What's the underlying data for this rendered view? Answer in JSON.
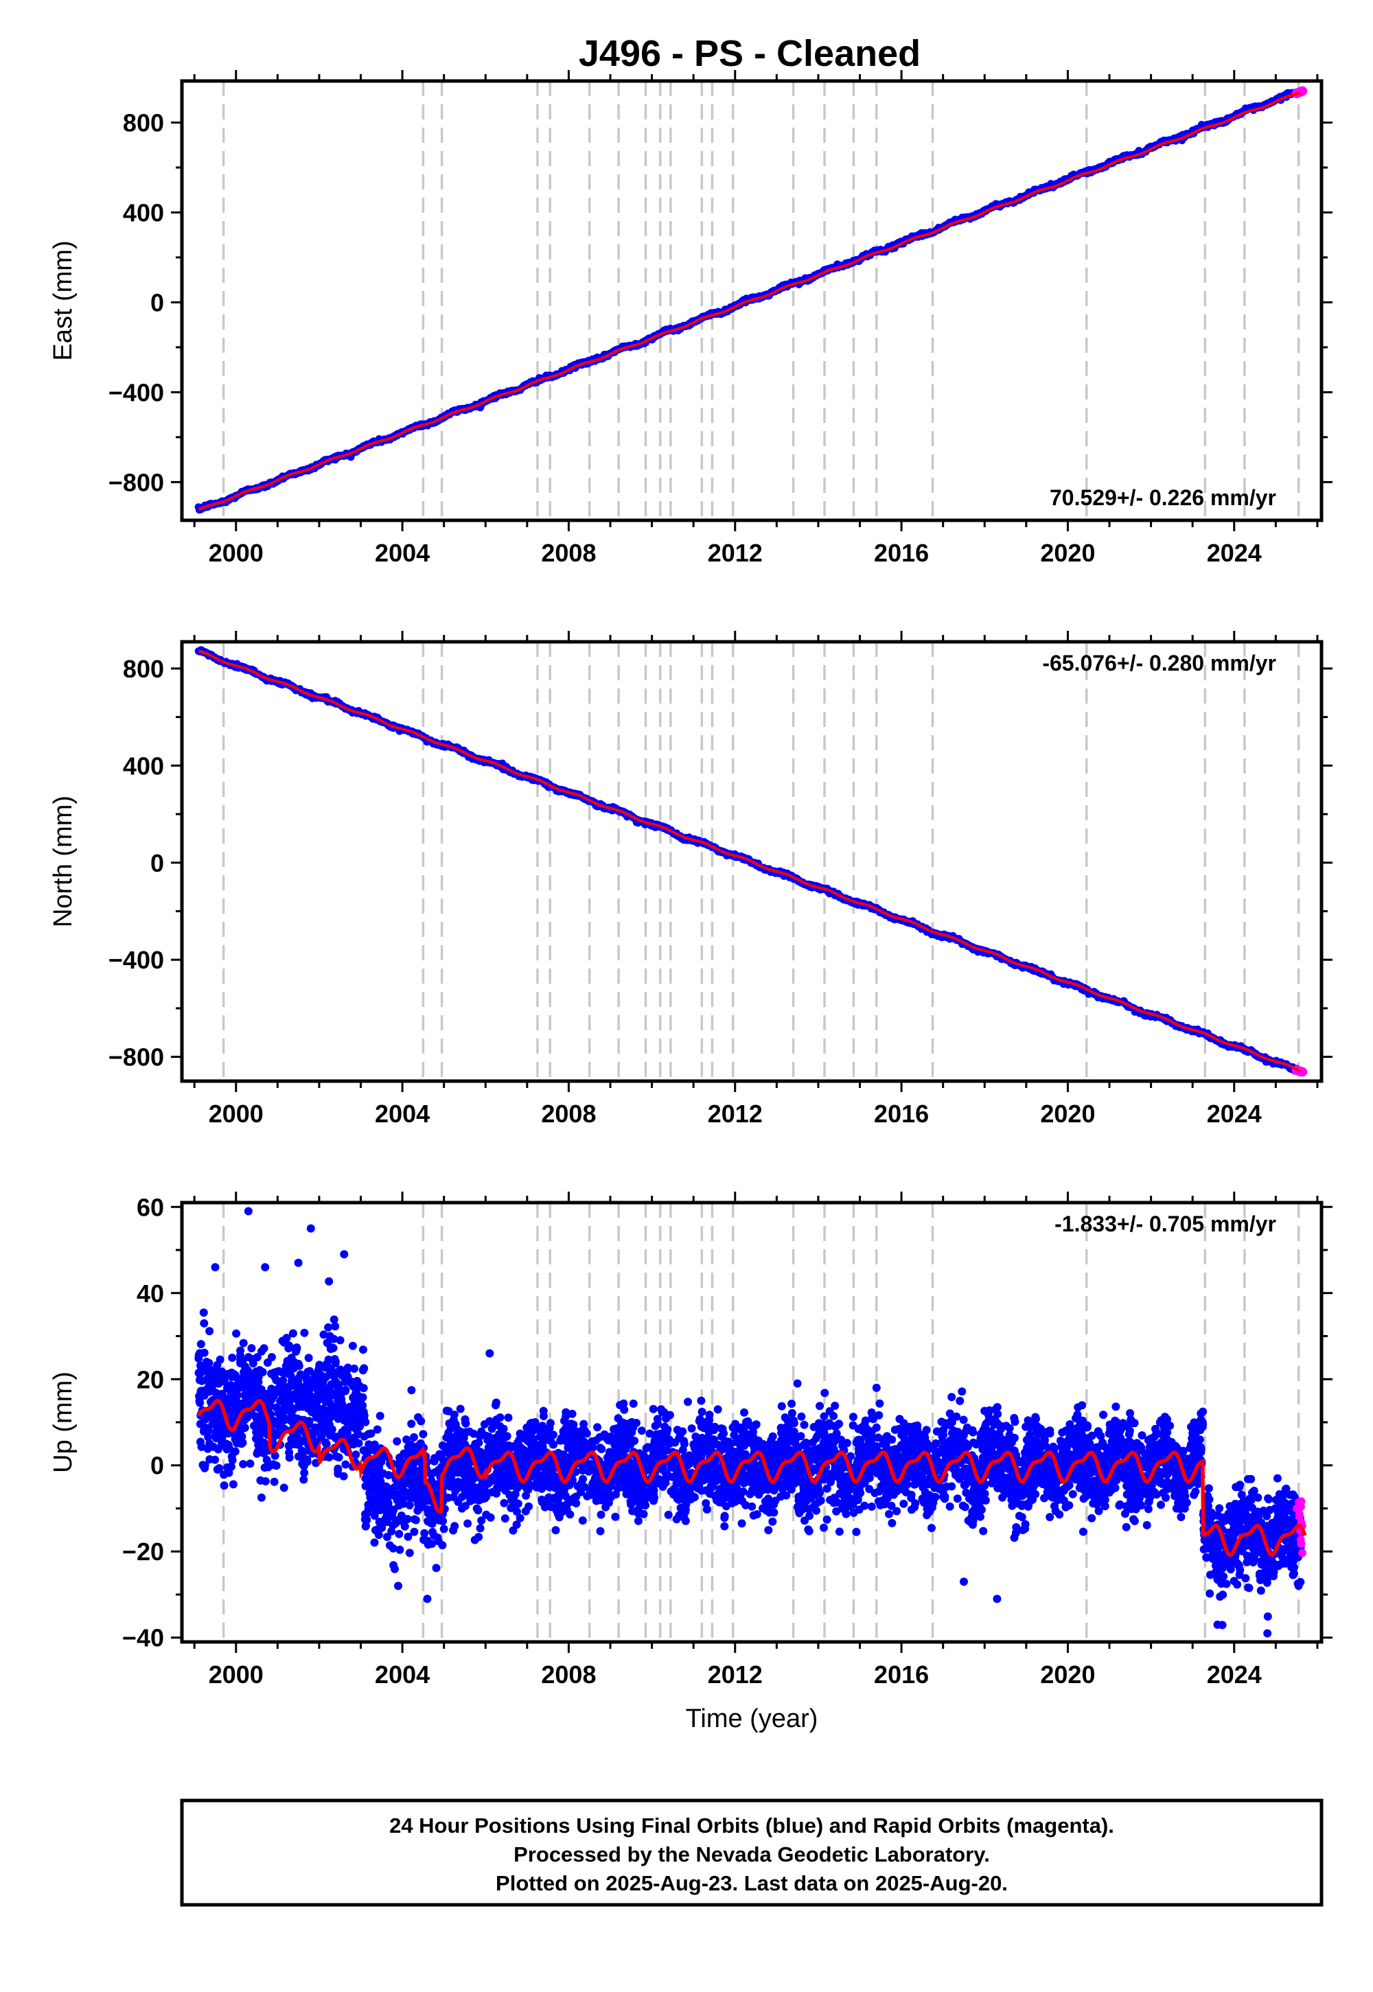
{
  "title": "J496  - PS - Cleaned",
  "colors": {
    "final_orbits": "#0000ff",
    "rapid_orbits": "#ff00ff",
    "model": "#ff0000",
    "event_lines": "#c8c8c8"
  },
  "chart_data": [
    {
      "type": "scatter",
      "component": "east",
      "ylabel": "East (mm)",
      "xlim": [
        1998.7,
        2026.1
      ],
      "ylim": [
        -970,
        985
      ],
      "yticks": [
        -800,
        -400,
        0,
        400,
        800
      ],
      "xticks": [
        2000,
        2004,
        2008,
        2012,
        2016,
        2020,
        2024
      ],
      "rate_label": "70.529+/- 0.226 mm/yr",
      "rate_position": "bottom-right",
      "series": [
        {
          "name": "Final Orbits",
          "color": "#0000ff",
          "x_start": 1999.1,
          "x_end": 2025.5,
          "y_start": -925,
          "y_end": 935
        },
        {
          "name": "Rapid Orbits",
          "color": "#ff00ff",
          "x_start": 2025.5,
          "x_end": 2025.64,
          "y_start": 930,
          "y_end": 940
        },
        {
          "name": "Model",
          "color": "#ff0000",
          "x_start": 1999.1,
          "x_end": 2025.6,
          "y_start": -925,
          "y_end": 935
        }
      ]
    },
    {
      "type": "scatter",
      "component": "north",
      "ylabel": "North (mm)",
      "xlim": [
        1998.7,
        2026.1
      ],
      "ylim": [
        -900,
        910
      ],
      "yticks": [
        -800,
        -400,
        0,
        400,
        800
      ],
      "xticks": [
        2000,
        2004,
        2008,
        2012,
        2016,
        2020,
        2024
      ],
      "rate_label": "-65.076+/- 0.280 mm/yr",
      "rate_position": "top-right",
      "series": [
        {
          "name": "Final Orbits",
          "color": "#0000ff",
          "x_start": 1999.1,
          "x_end": 2025.5,
          "y_start": 870,
          "y_end": -855
        },
        {
          "name": "Rapid Orbits",
          "color": "#ff00ff",
          "x_start": 2025.5,
          "x_end": 2025.64,
          "y_start": -855,
          "y_end": -862
        },
        {
          "name": "Model",
          "color": "#ff0000",
          "x_start": 1999.1,
          "x_end": 2025.6,
          "y_start": 870,
          "y_end": -858
        }
      ]
    },
    {
      "type": "scatter",
      "component": "up",
      "ylabel": "Up (mm)",
      "xlabel": "Time (year)",
      "xlim": [
        1998.7,
        2026.1
      ],
      "ylim": [
        -41,
        61
      ],
      "yticks": [
        -40,
        -20,
        0,
        20,
        40,
        60
      ],
      "xticks": [
        2000,
        2004,
        2008,
        2012,
        2016,
        2020,
        2024
      ],
      "rate_label": "-1.833+/- 0.705 mm/yr",
      "rate_position": "top-right",
      "model_steps": [
        {
          "x": 1999.1,
          "offset": 12
        },
        {
          "x": 2000.8,
          "offset": 7
        },
        {
          "x": 2002.0,
          "offset": 3
        },
        {
          "x": 2003.0,
          "offset": 1
        },
        {
          "x": 2004.5,
          "offset": 0
        },
        {
          "x": 2004.55,
          "offset": -7
        },
        {
          "x": 2004.95,
          "offset": 1
        },
        {
          "x": 2006.0,
          "offset": 0
        },
        {
          "x": 2020.45,
          "offset": 0
        },
        {
          "x": 2023.25,
          "offset": -17
        },
        {
          "x": 2025.7,
          "offset": -17
        }
      ],
      "noise_segments": [
        {
          "x0": 1999.1,
          "x1": 2003.1,
          "mean": 13,
          "sd": 7
        },
        {
          "x0": 2003.1,
          "x1": 2005.0,
          "mean": -5,
          "sd": 6
        },
        {
          "x0": 2005.0,
          "x1": 2020.45,
          "mean": 0,
          "sd": 5
        },
        {
          "x0": 2020.45,
          "x1": 2023.25,
          "mean": 0,
          "sd": 5
        },
        {
          "x0": 2023.25,
          "x1": 2025.6,
          "mean": -17,
          "sd": 5
        }
      ],
      "outliers": [
        {
          "x": 2000.3,
          "y": 59
        },
        {
          "x": 2001.8,
          "y": 55
        },
        {
          "x": 2002.6,
          "y": 49
        },
        {
          "x": 1999.5,
          "y": 46
        },
        {
          "x": 2000.7,
          "y": 46
        },
        {
          "x": 2001.5,
          "y": 47
        },
        {
          "x": 2006.1,
          "y": 26
        },
        {
          "x": 2017.5,
          "y": -27
        },
        {
          "x": 2018.3,
          "y": -31
        },
        {
          "x": 2004.6,
          "y": -31
        },
        {
          "x": 2023.6,
          "y": -37
        },
        {
          "x": 2024.8,
          "y": -39
        },
        {
          "x": 2003.9,
          "y": -28
        },
        {
          "x": 2013.5,
          "y": 19
        },
        {
          "x": 2015.4,
          "y": 18
        }
      ],
      "series": [
        {
          "name": "Final Orbits",
          "color": "#0000ff",
          "x_start": 1999.1,
          "x_end": 2025.5
        },
        {
          "name": "Rapid Orbits",
          "color": "#ff00ff",
          "x_start": 2025.5,
          "x_end": 2025.64
        },
        {
          "name": "Model",
          "color": "#ff0000"
        }
      ]
    }
  ],
  "event_lines_x": [
    1999.7,
    2004.5,
    2004.95,
    2007.25,
    2007.55,
    2008.5,
    2009.2,
    2009.85,
    2010.2,
    2010.45,
    2011.2,
    2011.45,
    2011.95,
    2013.4,
    2014.15,
    2014.85,
    2015.4,
    2016.75,
    2020.45,
    2023.3,
    2024.25,
    2025.55
  ],
  "footer": {
    "line1": "24 Hour Positions Using Final Orbits (blue) and Rapid Orbits (magenta).",
    "line2": "Processed by the Nevada Geodetic Laboratory.",
    "line3": "Plotted on 2025-Aug-23. Last data on 2025-Aug-20."
  }
}
